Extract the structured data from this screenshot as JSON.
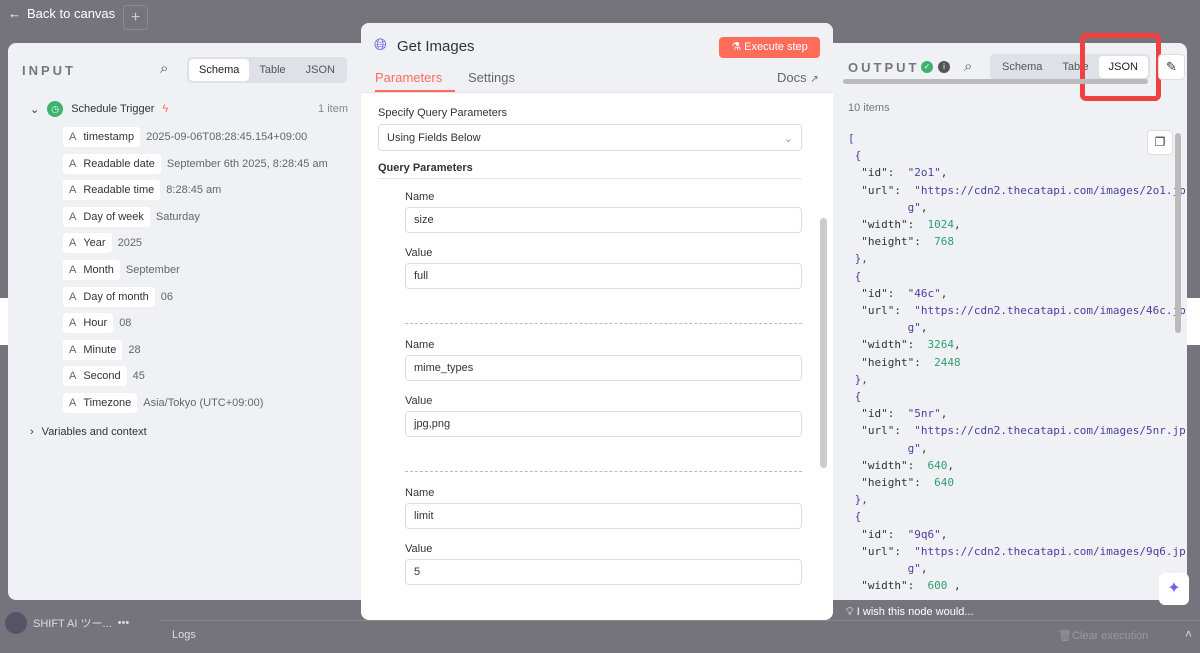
{
  "top": {
    "back_label": "Back to canvas",
    "plus": "+"
  },
  "input": {
    "title": "INPUT",
    "tabs": [
      "Schema",
      "Table",
      "JSON"
    ],
    "active_tab": "Schema",
    "node": "Schedule Trigger",
    "count": "1 item",
    "fields": [
      {
        "name": "timestamp",
        "value": "2025-09-06T08:28:45.154+09:00"
      },
      {
        "name": "Readable date",
        "value": "September 6th 2025, 8:28:45 am"
      },
      {
        "name": "Readable time",
        "value": "8:28:45 am"
      },
      {
        "name": "Day of week",
        "value": "Saturday"
      },
      {
        "name": "Year",
        "value": "2025"
      },
      {
        "name": "Month",
        "value": "September"
      },
      {
        "name": "Day of month",
        "value": "06"
      },
      {
        "name": "Hour",
        "value": "08"
      },
      {
        "name": "Minute",
        "value": "28"
      },
      {
        "name": "Second",
        "value": "45"
      },
      {
        "name": "Timezone",
        "value": "Asia/Tokyo (UTC+09:00)"
      }
    ],
    "type_glyph": "A",
    "variables": "Variables and context"
  },
  "node": {
    "title": "Get Images",
    "execute": "Execute step",
    "tabs": [
      "Parameters",
      "Settings"
    ],
    "docs": "Docs",
    "specify_label": "Specify Query Parameters",
    "specify_value": "Using Fields Below",
    "query_label": "Query Parameters",
    "name_label": "Name",
    "value_label": "Value",
    "params": [
      {
        "name": "size",
        "value": "full"
      },
      {
        "name": "mime_types",
        "value": "jpg,png"
      },
      {
        "name": "limit",
        "value": "5"
      }
    ]
  },
  "output": {
    "title": "OUTPUT",
    "tabs": [
      "Schema",
      "Table",
      "JSON"
    ],
    "active_tab": "JSON",
    "count": "10 items",
    "items": [
      {
        "id": "2o1",
        "url": "https://cdn2.thecatapi.com/images/2o1.jpg",
        "width": 1024,
        "height": 768
      },
      {
        "id": "46c",
        "url": "https://cdn2.thecatapi.com/images/46c.jpg",
        "width": 3264,
        "height": 2448
      },
      {
        "id": "5nr",
        "url": "https://cdn2.thecatapi.com/images/5nr.jpg",
        "width": 640,
        "height": 640
      },
      {
        "id": "9q6",
        "url": "https://cdn2.thecatapi.com/images/9q6.jpg",
        "width": 600
      }
    ],
    "wish": "I wish this node would..."
  },
  "bottom": {
    "workspace": "SHIFT AI ツー...",
    "logs": "Logs",
    "clear": "Clear execution"
  },
  "colors": {
    "accent": "#ff6d5a",
    "highlight": "#f04040",
    "success": "#3db36d"
  }
}
